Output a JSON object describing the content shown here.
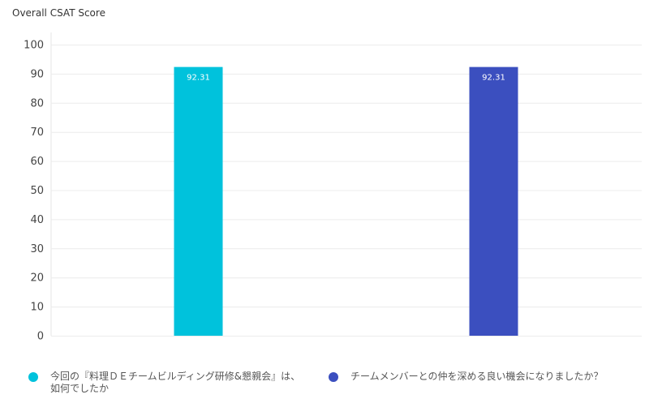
{
  "chart_data": {
    "type": "bar",
    "title": "Overall CSAT Score",
    "xlabel": "",
    "ylabel": "",
    "ylim": [
      0,
      100
    ],
    "yticks": [
      0,
      10,
      20,
      30,
      40,
      50,
      60,
      70,
      80,
      90,
      100
    ],
    "grid": true,
    "legend_position": "bottom",
    "series": [
      {
        "name": "今回の『料理ＤＥチームビルディング研修&懇親会』は、如何でしたか",
        "value": 92.31,
        "data_label": "92.31",
        "color": "#00c2dc"
      },
      {
        "name": "チームメンバーとの仲を深める良い機会になりましたか？",
        "value": 92.31,
        "data_label": "92.31",
        "color": "#3b4fbf"
      }
    ]
  }
}
